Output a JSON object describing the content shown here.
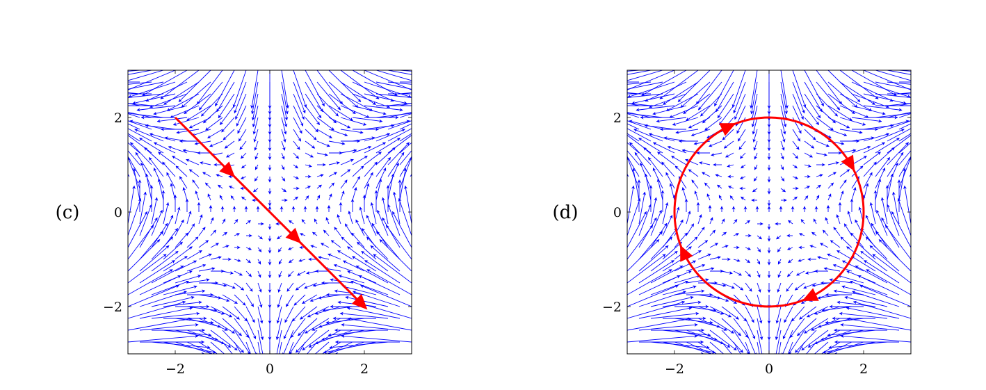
{
  "chart_data": [
    {
      "type": "quiver",
      "panel_label": "(c)",
      "xlim": [
        -3,
        3
      ],
      "ylim": [
        -3,
        3
      ],
      "xticks": [
        -2,
        0,
        2
      ],
      "yticks": [
        -2,
        0,
        2
      ],
      "xtick_labels": [
        "−2",
        "0",
        "2"
      ],
      "ytick_labels": [
        "−2",
        "0",
        "2"
      ],
      "grid": false,
      "field_color": "#0000ff",
      "field_samples": 25,
      "path": {
        "type": "segment",
        "from": [
          -2,
          2
        ],
        "to": [
          2,
          -2
        ],
        "color": "#ff0000",
        "direction_arrows_at": [
          [
            -0.85,
            0.85
          ],
          [
            0.55,
            -0.55
          ],
          [
            1.95,
            -1.95
          ]
        ]
      }
    },
    {
      "type": "quiver",
      "panel_label": "(d)",
      "xlim": [
        -3,
        3
      ],
      "ylim": [
        -3,
        3
      ],
      "xticks": [
        -2,
        0,
        2
      ],
      "yticks": [
        -2,
        0,
        2
      ],
      "xtick_labels": [
        "−2",
        "0",
        "2"
      ],
      "ytick_labels": [
        "−2",
        "0",
        "2"
      ],
      "grid": false,
      "field_color": "#0000ff",
      "field_samples": 25,
      "path": {
        "type": "circle",
        "center": [
          0,
          0
        ],
        "radius": 2,
        "orientation": "clockwise",
        "color": "#ff0000",
        "direction_arrows_at_deg": [
          115,
          30,
          -65,
          -155
        ]
      }
    }
  ]
}
